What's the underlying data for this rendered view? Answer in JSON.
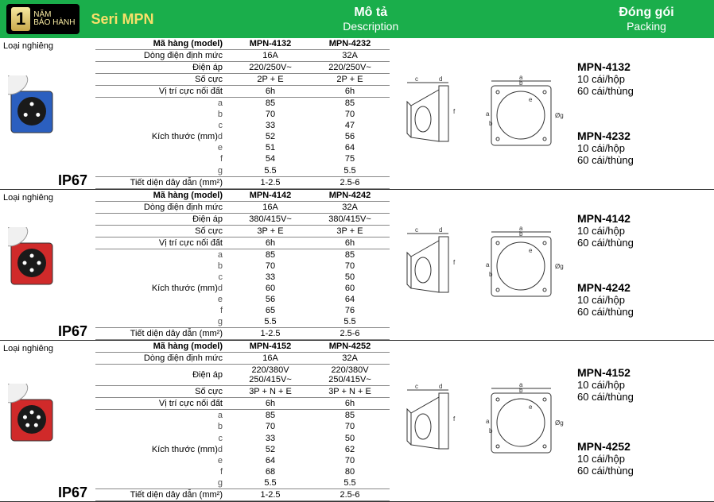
{
  "header": {
    "warranty_num": "1",
    "warranty_text_top": "NĂM",
    "warranty_text_bottom": "BẢO HÀNH",
    "seri": "Seri MPN",
    "desc_vi": "Mô tả",
    "desc_en": "Description",
    "pack_vi": "Đóng gói",
    "pack_en": "Packing"
  },
  "sections": [
    {
      "tilt_label": "Loại nghiêng",
      "ip": "IP67",
      "socket_color": "#2b5fbf",
      "socket_pins": 3,
      "table": {
        "model_label": "Mã hàng (model)",
        "models": [
          "MPN-4132",
          "MPN-4232"
        ],
        "rows": [
          {
            "label": "Dòng điện định mức",
            "vals": [
              "16A",
              "32A"
            ]
          },
          {
            "label": "Điện áp",
            "vals": [
              "220/250V~",
              "220/250V~"
            ]
          },
          {
            "label": "Số cực",
            "vals": [
              "2P + E",
              "2P + E"
            ]
          },
          {
            "label": "Vị trí cực nối đất",
            "vals": [
              "6h",
              "6h"
            ]
          }
        ],
        "dim_label": "Kích thước (mm)",
        "dims": [
          {
            "k": "a",
            "vals": [
              "85",
              "85"
            ]
          },
          {
            "k": "b",
            "vals": [
              "70",
              "70"
            ]
          },
          {
            "k": "c",
            "vals": [
              "33",
              "47"
            ]
          },
          {
            "k": "d",
            "vals": [
              "52",
              "56"
            ]
          },
          {
            "k": "e",
            "vals": [
              "51",
              "64"
            ]
          },
          {
            "k": "f",
            "vals": [
              "54",
              "75"
            ]
          },
          {
            "k": "g",
            "vals": [
              "5.5",
              "5.5"
            ]
          }
        ],
        "wire_label": "Tiết diện dây dẫn (mm²)",
        "wire_vals": [
          "1-2.5",
          "2.5-6"
        ]
      },
      "packing": [
        {
          "model": "MPN-4132",
          "box": "10 cái/hộp",
          "carton": "60 cái/thùng"
        },
        {
          "model": "MPN-4232",
          "box": "10 cái/hộp",
          "carton": "60 cái/thùng"
        }
      ]
    },
    {
      "tilt_label": "Loại nghiêng",
      "ip": "IP67",
      "socket_color": "#d02a2a",
      "socket_pins": 4,
      "table": {
        "model_label": "Mã hàng (model)",
        "models": [
          "MPN-4142",
          "MPN-4242"
        ],
        "rows": [
          {
            "label": "Dòng điện định mức",
            "vals": [
              "16A",
              "32A"
            ]
          },
          {
            "label": "Điện áp",
            "vals": [
              "380/415V~",
              "380/415V~"
            ]
          },
          {
            "label": "Số cực",
            "vals": [
              "3P + E",
              "3P + E"
            ]
          },
          {
            "label": "Vị trí cực nối đất",
            "vals": [
              "6h",
              "6h"
            ]
          }
        ],
        "dim_label": "Kích thước (mm)",
        "dims": [
          {
            "k": "a",
            "vals": [
              "85",
              "85"
            ]
          },
          {
            "k": "b",
            "vals": [
              "70",
              "70"
            ]
          },
          {
            "k": "c",
            "vals": [
              "33",
              "50"
            ]
          },
          {
            "k": "d",
            "vals": [
              "60",
              "60"
            ]
          },
          {
            "k": "e",
            "vals": [
              "56",
              "64"
            ]
          },
          {
            "k": "f",
            "vals": [
              "65",
              "76"
            ]
          },
          {
            "k": "g",
            "vals": [
              "5.5",
              "5.5"
            ]
          }
        ],
        "wire_label": "Tiết diện dây dẫn (mm²)",
        "wire_vals": [
          "1-2.5",
          "2.5-6"
        ]
      },
      "packing": [
        {
          "model": "MPN-4142",
          "box": "10 cái/hộp",
          "carton": "60 cái/thùng"
        },
        {
          "model": "MPN-4242",
          "box": "10 cái/hộp",
          "carton": "60 cái/thùng"
        }
      ]
    },
    {
      "tilt_label": "Loại nghiêng",
      "ip": "IP67",
      "socket_color": "#d02a2a",
      "socket_pins": 5,
      "table": {
        "model_label": "Mã hàng (model)",
        "models": [
          "MPN-4152",
          "MPN-4252"
        ],
        "rows": [
          {
            "label": "Dòng điện định mức",
            "vals": [
              "16A",
              "32A"
            ]
          },
          {
            "label": "Điện áp",
            "vals": [
              "220/380V 250/415V~",
              "220/380V 250/415V~"
            ]
          },
          {
            "label": "Số cực",
            "vals": [
              "3P + N + E",
              "3P + N + E"
            ]
          },
          {
            "label": "Vị trí cực nối đất",
            "vals": [
              "6h",
              "6h"
            ]
          }
        ],
        "dim_label": "Kích thước (mm)",
        "dims": [
          {
            "k": "a",
            "vals": [
              "85",
              "85"
            ]
          },
          {
            "k": "b",
            "vals": [
              "70",
              "70"
            ]
          },
          {
            "k": "c",
            "vals": [
              "33",
              "50"
            ]
          },
          {
            "k": "d",
            "vals": [
              "52",
              "62"
            ]
          },
          {
            "k": "e",
            "vals": [
              "64",
              "70"
            ]
          },
          {
            "k": "f",
            "vals": [
              "68",
              "80"
            ]
          },
          {
            "k": "g",
            "vals": [
              "5.5",
              "5.5"
            ]
          }
        ],
        "wire_label": "Tiết diện dây dẫn (mm²)",
        "wire_vals": [
          "1-2.5",
          "2.5-6"
        ]
      },
      "packing": [
        {
          "model": "MPN-4152",
          "box": "10 cái/hộp",
          "carton": "60 cái/thùng"
        },
        {
          "model": "MPN-4252",
          "box": "10 cái/hộp",
          "carton": "60 cái/thùng"
        }
      ]
    }
  ],
  "colors": {
    "header_bg": "#1aae4b",
    "badge_gold": "#f7e06a",
    "border": "#888888"
  }
}
